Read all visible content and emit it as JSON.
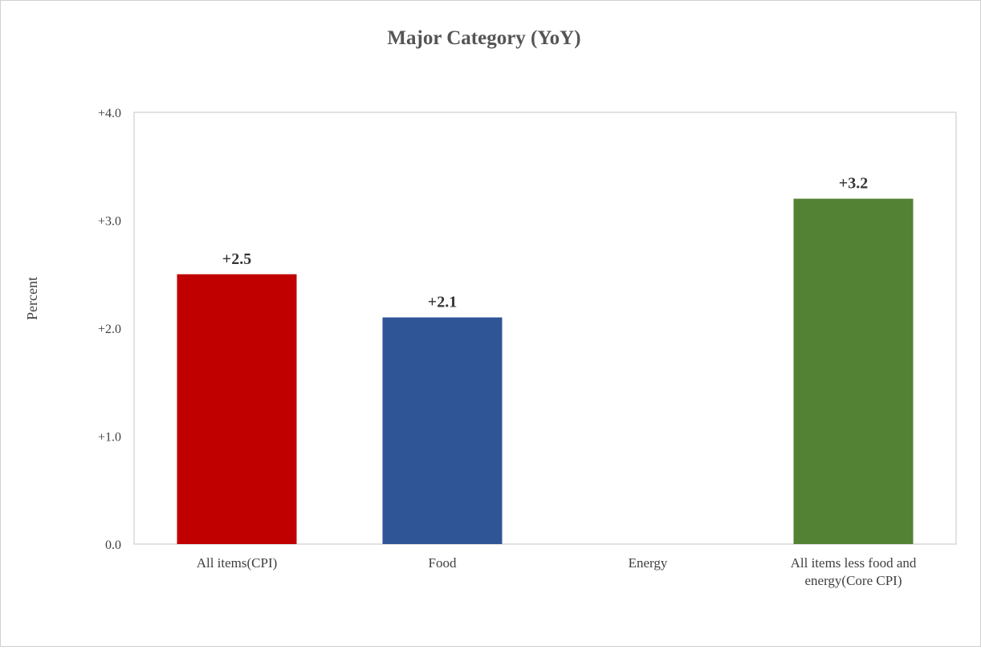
{
  "chart_data": {
    "type": "bar",
    "title": "Major Category (YoY)",
    "xlabel": "",
    "ylabel": "Percent",
    "categories": [
      [
        "All items(CPI)"
      ],
      [
        "Food"
      ],
      [
        "Energy"
      ],
      [
        "All items less food and",
        "energy(Core CPI)"
      ]
    ],
    "values": [
      2.5,
      2.1,
      null,
      3.2
    ],
    "data_labels": [
      "+2.5",
      "+2.1",
      "",
      "+3.2"
    ],
    "colors": [
      "#c00000",
      "#2f5597",
      "#ffffff",
      "#548235"
    ],
    "ylim": [
      0,
      4
    ],
    "yticks": [
      0,
      1,
      2,
      3,
      4
    ],
    "ytick_labels": [
      "0.0",
      "+1.0",
      "+2.0",
      "+3.0",
      "+4.0"
    ],
    "grid": false,
    "legend": "none"
  }
}
